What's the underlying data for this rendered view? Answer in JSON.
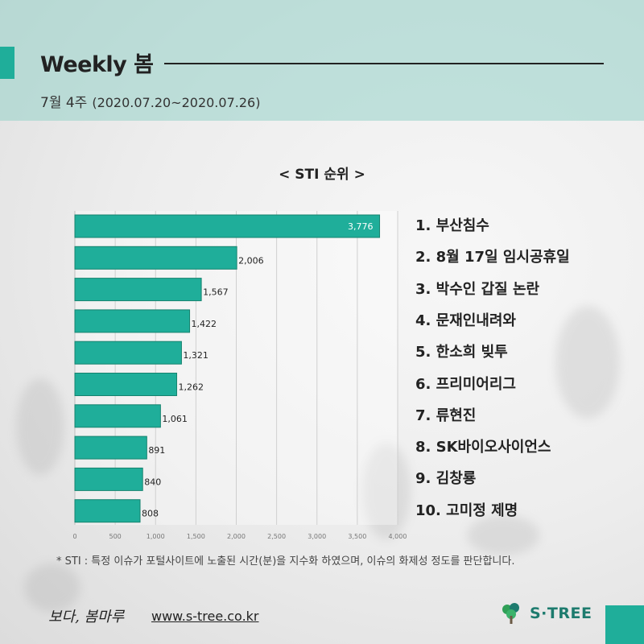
{
  "header": {
    "title": "Weekly 봄",
    "week": "7월 4주",
    "range": "(2020.07.20~2020.07.26)"
  },
  "chart_title": "< STI 순위 >",
  "colors": {
    "accent": "#1fae9a",
    "bar": "#1fae9a",
    "bar_stroke": "#16836f"
  },
  "chart_data": {
    "type": "bar",
    "orientation": "horizontal",
    "categories": [
      "1. 부산침수",
      "2. 8월 17일 임시공휴일",
      "3. 박수인 갑질 논란",
      "4. 문재인내려와",
      "5. 한소희 빚투",
      "6. 프리미어리그",
      "7. 류현진",
      "8. SK바이오사이언스",
      "9. 김창룡",
      "10. 고미정 제명"
    ],
    "values": [
      3776,
      2006,
      1567,
      1422,
      1321,
      1262,
      1061,
      891,
      840,
      808
    ],
    "value_labels": [
      "3,776",
      "2,006",
      "1,567",
      "1,422",
      "1,321",
      "1,262",
      "1,061",
      "891",
      "840",
      "808"
    ],
    "x_ticks": [
      "0",
      "500",
      "1,000",
      "1,500",
      "2,000",
      "2,500",
      "3,000",
      "3,500",
      "4,000"
    ],
    "xlim": [
      0,
      4000
    ],
    "grid": true
  },
  "footnote": "* STI : 특정 이슈가 포털사이트에 노출된 시간(분)을 지수화 하였으며, 이슈의 화제성 정도를 판단합니다.",
  "footer": {
    "brand": "보다, 봄마루",
    "url": "www.s-tree.co.kr",
    "logo_text": "S·TREE"
  }
}
